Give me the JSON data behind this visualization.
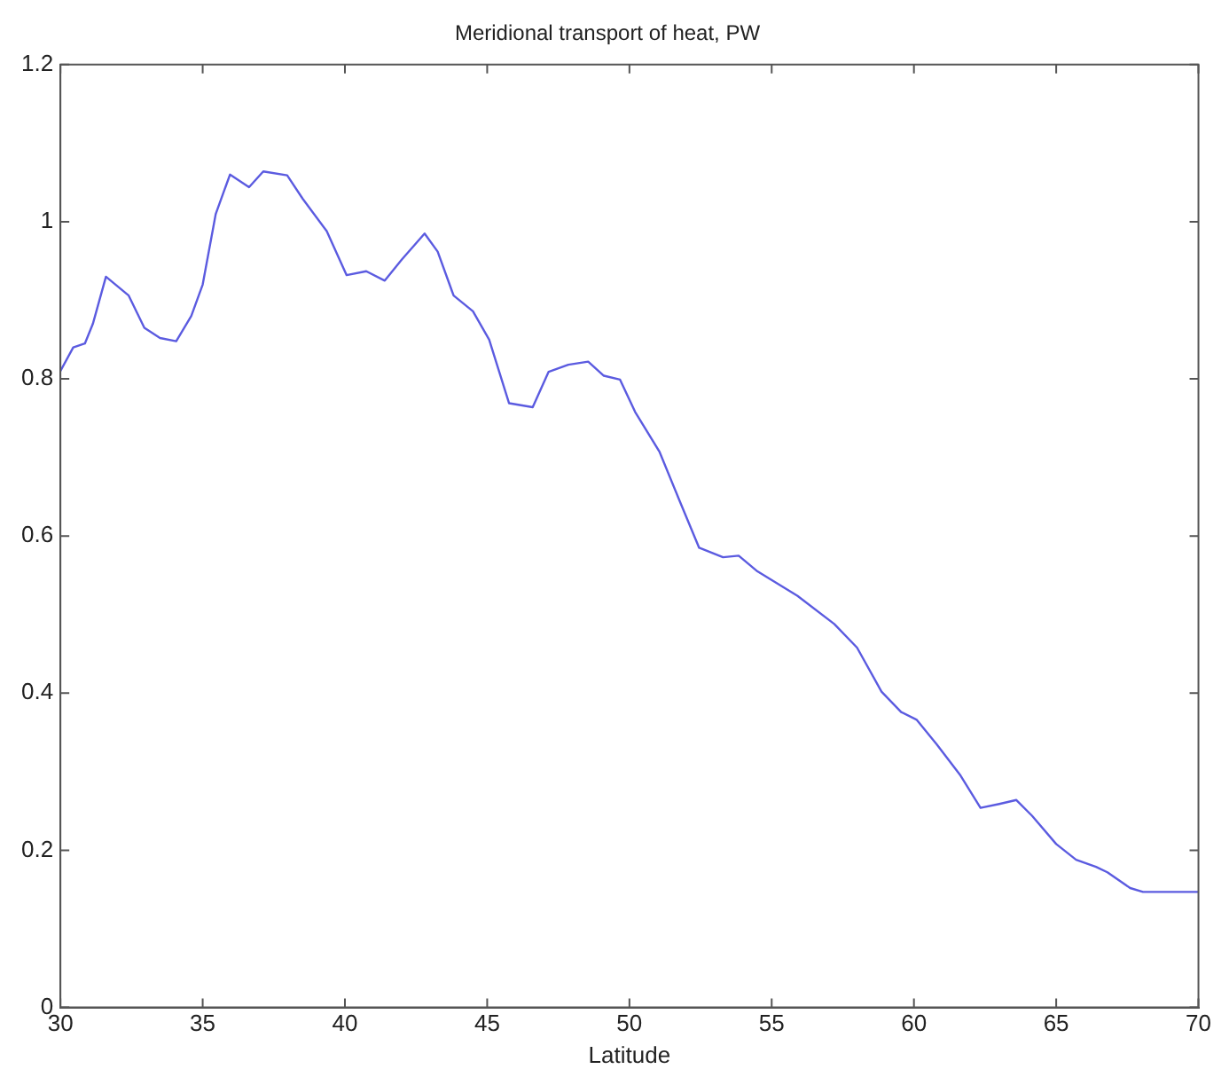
{
  "chart_data": {
    "type": "line",
    "title": "Meridional transport of heat, PW",
    "xlabel": "Latitude",
    "x": [
      30,
      30.45,
      30.86,
      31.14,
      31.6,
      32.4,
      32.95,
      33.5,
      34.07,
      34.6,
      35,
      35.46,
      35.96,
      36.63,
      37.13,
      37.97,
      38.52,
      39.36,
      40.06,
      40.75,
      41.4,
      42,
      42.8,
      43.26,
      43.82,
      44.5,
      45.07,
      45.77,
      46.6,
      47.16,
      47.85,
      48.55,
      49.1,
      49.67,
      50.2,
      51.06,
      51.75,
      52.45,
      53.29,
      53.84,
      54.5,
      55.9,
      57.2,
      58,
      58.86,
      59.55,
      60.1,
      60.8,
      61.64,
      62.34,
      63,
      63.6,
      64.15,
      65,
      65.7,
      66.4,
      66.8,
      67.6,
      68.05,
      70
    ],
    "series": [
      {
        "color": "#5b5be0",
        "values": [
          0.81,
          0.84,
          0.845,
          0.87,
          0.93,
          0.906,
          0.865,
          0.852,
          0.848,
          0.88,
          0.92,
          1.01,
          1.06,
          1.044,
          1.064,
          1.059,
          1.029,
          0.988,
          0.932,
          0.937,
          0.925,
          0.952,
          0.985,
          0.962,
          0.906,
          0.886,
          0.85,
          0.769,
          0.764,
          0.809,
          0.818,
          0.822,
          0.804,
          0.799,
          0.758,
          0.707,
          0.646,
          0.585,
          0.573,
          0.575,
          0.555,
          0.524,
          0.488,
          0.458,
          0.402,
          0.376,
          0.366,
          0.335,
          0.295,
          0.254,
          0.259,
          0.264,
          0.244,
          0.208,
          0.188,
          0.179,
          0.172,
          0.152,
          0.147,
          0.147
        ]
      }
    ],
    "xlim": [
      30,
      70
    ],
    "xticks": [
      30,
      35,
      40,
      45,
      50,
      55,
      60,
      65,
      70
    ],
    "ylim": [
      0,
      1.2
    ],
    "yticks": [
      0,
      0.2,
      0.4,
      0.6,
      0.8,
      1,
      1.2
    ],
    "grid": false,
    "legend": false,
    "marker": "none",
    "line_style": "solid"
  }
}
